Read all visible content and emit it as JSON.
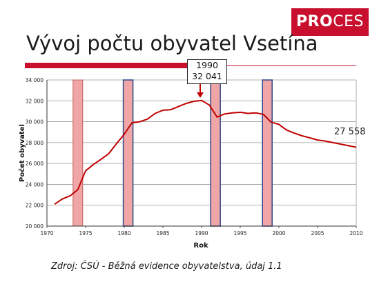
{
  "logo": {
    "bold": "PRO",
    "rest": "CES"
  },
  "title": "Vývoj počtu obyvatel Vsetína",
  "source": "Zdroj: ČSÚ - Běžná evidence obyvatelstva, údaj 1.1",
  "callout": {
    "year": "1990",
    "value": "32 041"
  },
  "end_label": "27 558",
  "colors": {
    "brand": "#c8102e",
    "line": "#c00000",
    "bar_fill": "#f0a6a6",
    "bar_border_red": "#c06060",
    "bar_border_blue": "#3a4f8a"
  },
  "chart_data": {
    "type": "line",
    "xlabel": "Rok",
    "ylabel": "Počet obyvatel",
    "xlim": [
      1970,
      2010
    ],
    "ylim": [
      20000,
      34000
    ],
    "x_ticks": [
      "1970",
      "1975",
      "1980",
      "1985",
      "1990",
      "1995",
      "2000",
      "2005",
      "2010"
    ],
    "y_ticks": [
      "20 000",
      "22 000",
      "24 000",
      "26 000",
      "28 000",
      "30 000",
      "32 000",
      "34 000"
    ],
    "grid": true,
    "series": [
      {
        "x": [
          1971,
          1972,
          1973,
          1974,
          1975,
          1976,
          1977,
          1978,
          1979,
          1980,
          1981,
          1982,
          1983,
          1984,
          1985,
          1986,
          1987,
          1988,
          1989,
          1990,
          1991,
          1992,
          1993,
          1994,
          1995,
          1996,
          1997,
          1998,
          1999,
          2000,
          2001,
          2002,
          2003,
          2004,
          2005,
          2006,
          2007,
          2008,
          2009,
          2010
        ],
        "y": [
          22100,
          22600,
          22900,
          23500,
          25300,
          25900,
          26400,
          26950,
          27900,
          28800,
          29900,
          30000,
          30250,
          30800,
          31100,
          31150,
          31450,
          31750,
          31950,
          32041,
          31600,
          30450,
          30750,
          30850,
          30900,
          30800,
          30850,
          30700,
          29950,
          29750,
          29200,
          28900,
          28650,
          28450,
          28250,
          28150,
          28000,
          27850,
          27700,
          27558
        ]
      }
    ],
    "highlight_bars": [
      {
        "x": 1974,
        "style": "red"
      },
      {
        "x": 1980.5,
        "style": "blue"
      },
      {
        "x": 1991.8,
        "style": "blue"
      },
      {
        "x": 1998.5,
        "style": "blue"
      }
    ]
  }
}
